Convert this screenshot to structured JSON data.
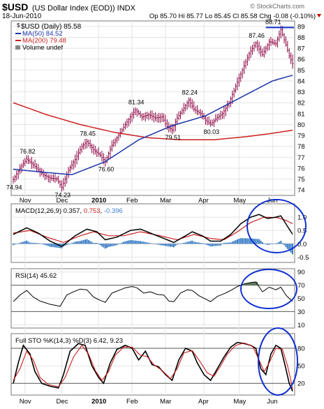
{
  "header": {
    "symbol": "$USD",
    "name": "(US Dollar Index (EOD)) INDX",
    "date": "18-Jun-2010",
    "quote": "Op 85.70  Hi 85.77  Lo 85.45  Cl 85.58  Chg -0.08 (-0.10%)",
    "watermark": "© StockCharts.com"
  },
  "colors": {
    "price_bars": "#8b0040",
    "ma50": "#1a33aa",
    "ma200": "#cc1f1f",
    "macd_line": "#000000",
    "signal_line": "#cc1f1f",
    "histogram": "#3c7fc8",
    "rsi_fill": "#5d7a5d",
    "circle": "#1030d0",
    "resistance": "#1030d0"
  },
  "chart_data": [
    {
      "type": "line",
      "panel": "price",
      "legend": [
        "$USD (Daily) 85.58",
        "MA(50) 84.52",
        "MA(200) 79.48",
        "Volume undef"
      ],
      "ylim": [
        73.5,
        89.5
      ],
      "yticks": [
        74,
        75,
        76,
        77,
        78,
        79,
        80,
        81,
        82,
        83,
        84,
        85,
        86,
        87,
        88,
        89
      ],
      "x_months": [
        {
          "label": "Nov",
          "idx": 7
        },
        {
          "label": "Dec",
          "idx": 29
        },
        {
          "label": "2010",
          "idx": 51
        },
        {
          "label": "Feb",
          "idx": 71
        },
        {
          "label": "Mar",
          "idx": 91
        },
        {
          "label": "Apr",
          "idx": 114
        },
        {
          "label": "May",
          "idx": 135
        },
        {
          "label": "Jun",
          "idx": 155
        }
      ],
      "n_days": 168,
      "close_anchors": [
        [
          0,
          74.94
        ],
        [
          4,
          76.0
        ],
        [
          8,
          76.82
        ],
        [
          12,
          76.3
        ],
        [
          18,
          75.4
        ],
        [
          22,
          75.1
        ],
        [
          26,
          75.0
        ],
        [
          29,
          74.23
        ],
        [
          33,
          75.8
        ],
        [
          37,
          76.8
        ],
        [
          41,
          78.0
        ],
        [
          44,
          78.45
        ],
        [
          48,
          77.7
        ],
        [
          52,
          77.2
        ],
        [
          55,
          76.6
        ],
        [
          59,
          78.1
        ],
        [
          63,
          79.0
        ],
        [
          67,
          80.0
        ],
        [
          70,
          80.7
        ],
        [
          73,
          81.34
        ],
        [
          77,
          80.7
        ],
        [
          81,
          80.9
        ],
        [
          85,
          80.6
        ],
        [
          89,
          80.7
        ],
        [
          92,
          79.8
        ],
        [
          95,
          79.51
        ],
        [
          98,
          80.6
        ],
        [
          102,
          81.5
        ],
        [
          105,
          82.24
        ],
        [
          108,
          81.4
        ],
        [
          112,
          81.0
        ],
        [
          115,
          80.4
        ],
        [
          118,
          80.03
        ],
        [
          121,
          80.5
        ],
        [
          125,
          81.0
        ],
        [
          129,
          82.0
        ],
        [
          133,
          83.5
        ],
        [
          137,
          85.0
        ],
        [
          141,
          86.5
        ],
        [
          145,
          87.46
        ],
        [
          149,
          86.4
        ],
        [
          153,
          87.6
        ],
        [
          157,
          87.4
        ],
        [
          160,
          88.71
        ],
        [
          163,
          87.3
        ],
        [
          165,
          86.3
        ],
        [
          167,
          85.58
        ]
      ],
      "annotations": [
        {
          "text": "74.94",
          "idx": 0
        },
        {
          "text": "76.82",
          "idx": 8
        },
        {
          "text": "74.23",
          "idx": 29
        },
        {
          "text": "78.45",
          "idx": 44
        },
        {
          "text": "76.60",
          "idx": 55
        },
        {
          "text": "81.34",
          "idx": 73
        },
        {
          "text": "79.51",
          "idx": 95
        },
        {
          "text": "82.24",
          "idx": 105
        },
        {
          "text": "80.03",
          "idx": 118
        },
        {
          "text": "87.46",
          "idx": 145
        },
        {
          "text": "88.71",
          "idx": 160
        }
      ],
      "ma50_anchors": [
        [
          0,
          75.9
        ],
        [
          20,
          75.6
        ],
        [
          35,
          75.4
        ],
        [
          55,
          76.6
        ],
        [
          75,
          78.6
        ],
        [
          95,
          79.9
        ],
        [
          115,
          80.8
        ],
        [
          135,
          82.4
        ],
        [
          155,
          84.0
        ],
        [
          167,
          84.52
        ]
      ],
      "ma200_anchors": [
        [
          0,
          82.0
        ],
        [
          20,
          80.9
        ],
        [
          40,
          80.0
        ],
        [
          60,
          79.3
        ],
        [
          80,
          78.8
        ],
        [
          100,
          78.6
        ],
        [
          120,
          78.6
        ],
        [
          140,
          78.9
        ],
        [
          155,
          79.2
        ],
        [
          167,
          79.48
        ]
      ],
      "resistance_level": 88.9
    },
    {
      "type": "line",
      "panel": "macd",
      "title": "MACD(12,26,9) 0.357, 0.753, -0.396",
      "legend_parts": [
        "MACD(12,26,9) 0.357",
        "0.753",
        "-0.396"
      ],
      "ylim": [
        -0.7,
        1.5
      ],
      "yticks": [
        {
          "label": "1.0",
          "v": 1.0
        },
        {
          "label": "0.5",
          "v": 0.5
        },
        {
          "label": "0.0",
          "v": 0.0
        },
        {
          "label": "-0.5",
          "v": -0.5
        }
      ],
      "macd_anchors": [
        [
          0,
          0.35
        ],
        [
          8,
          0.6
        ],
        [
          15,
          0.4
        ],
        [
          22,
          0.1
        ],
        [
          29,
          -0.1
        ],
        [
          37,
          0.3
        ],
        [
          44,
          0.55
        ],
        [
          50,
          0.45
        ],
        [
          55,
          0.15
        ],
        [
          62,
          0.25
        ],
        [
          70,
          0.5
        ],
        [
          76,
          0.55
        ],
        [
          84,
          0.35
        ],
        [
          92,
          0.15
        ],
        [
          96,
          0.05
        ],
        [
          103,
          0.3
        ],
        [
          107,
          0.45
        ],
        [
          113,
          0.3
        ],
        [
          118,
          0.1
        ],
        [
          124,
          0.1
        ],
        [
          130,
          0.35
        ],
        [
          136,
          0.75
        ],
        [
          142,
          1.0
        ],
        [
          147,
          1.1
        ],
        [
          152,
          0.95
        ],
        [
          157,
          1.0
        ],
        [
          160,
          1.05
        ],
        [
          164,
          0.65
        ],
        [
          167,
          0.357
        ]
      ],
      "signal_anchors": [
        [
          0,
          0.4
        ],
        [
          10,
          0.5
        ],
        [
          20,
          0.25
        ],
        [
          30,
          0.05
        ],
        [
          40,
          0.3
        ],
        [
          48,
          0.45
        ],
        [
          57,
          0.3
        ],
        [
          66,
          0.3
        ],
        [
          76,
          0.45
        ],
        [
          88,
          0.3
        ],
        [
          98,
          0.15
        ],
        [
          108,
          0.35
        ],
        [
          118,
          0.2
        ],
        [
          126,
          0.15
        ],
        [
          134,
          0.45
        ],
        [
          142,
          0.8
        ],
        [
          150,
          1.0
        ],
        [
          158,
          0.98
        ],
        [
          163,
          0.88
        ],
        [
          167,
          0.753
        ]
      ]
    },
    {
      "type": "line",
      "panel": "rsi",
      "title": "RSI(14) 45.62",
      "ylim": [
        5,
        95
      ],
      "yticks": [
        90,
        70,
        50,
        30,
        10
      ],
      "overbought": 70,
      "oversold": 30,
      "rsi_anchors": [
        [
          0,
          45
        ],
        [
          4,
          55
        ],
        [
          8,
          62
        ],
        [
          12,
          52
        ],
        [
          16,
          46
        ],
        [
          22,
          41
        ],
        [
          28,
          38
        ],
        [
          32,
          55
        ],
        [
          36,
          60
        ],
        [
          40,
          64
        ],
        [
          44,
          63
        ],
        [
          48,
          52
        ],
        [
          52,
          47
        ],
        [
          55,
          44
        ],
        [
          59,
          58
        ],
        [
          63,
          62
        ],
        [
          67,
          66
        ],
        [
          71,
          68
        ],
        [
          74,
          66
        ],
        [
          78,
          58
        ],
        [
          82,
          60
        ],
        [
          86,
          56
        ],
        [
          90,
          55
        ],
        [
          93,
          46
        ],
        [
          96,
          45
        ],
        [
          100,
          58
        ],
        [
          104,
          63
        ],
        [
          107,
          62
        ],
        [
          111,
          54
        ],
        [
          115,
          49
        ],
        [
          118,
          45
        ],
        [
          122,
          53
        ],
        [
          126,
          57
        ],
        [
          130,
          62
        ],
        [
          134,
          68
        ],
        [
          138,
          72
        ],
        [
          142,
          74
        ],
        [
          145,
          75
        ],
        [
          149,
          60
        ],
        [
          153,
          67
        ],
        [
          157,
          63
        ],
        [
          160,
          67
        ],
        [
          163,
          55
        ],
        [
          165,
          50
        ],
        [
          167,
          45.62
        ]
      ]
    },
    {
      "type": "line",
      "panel": "sto",
      "title": "Full STO %K(14,3) %D(3) 6.42, 9.23",
      "ylim": [
        0,
        105
      ],
      "yticks": [
        80,
        50,
        20
      ],
      "k_anchors": [
        [
          0,
          20
        ],
        [
          3,
          55
        ],
        [
          6,
          85
        ],
        [
          10,
          70
        ],
        [
          13,
          40
        ],
        [
          17,
          20
        ],
        [
          22,
          15
        ],
        [
          27,
          12
        ],
        [
          30,
          35
        ],
        [
          34,
          75
        ],
        [
          39,
          88
        ],
        [
          43,
          85
        ],
        [
          47,
          50
        ],
        [
          51,
          30
        ],
        [
          54,
          20
        ],
        [
          58,
          55
        ],
        [
          62,
          78
        ],
        [
          67,
          85
        ],
        [
          71,
          80
        ],
        [
          75,
          60
        ],
        [
          79,
          75
        ],
        [
          83,
          52
        ],
        [
          87,
          48
        ],
        [
          91,
          35
        ],
        [
          95,
          25
        ],
        [
          99,
          60
        ],
        [
          103,
          80
        ],
        [
          107,
          75
        ],
        [
          110,
          55
        ],
        [
          114,
          35
        ],
        [
          118,
          25
        ],
        [
          122,
          45
        ],
        [
          126,
          65
        ],
        [
          130,
          82
        ],
        [
          134,
          90
        ],
        [
          138,
          88
        ],
        [
          142,
          85
        ],
        [
          145,
          80
        ],
        [
          148,
          45
        ],
        [
          151,
          35
        ],
        [
          154,
          70
        ],
        [
          157,
          85
        ],
        [
          160,
          80
        ],
        [
          163,
          45
        ],
        [
          165,
          20
        ],
        [
          167,
          6.42
        ]
      ],
      "d_anchors": [
        [
          0,
          25
        ],
        [
          4,
          45
        ],
        [
          8,
          75
        ],
        [
          12,
          60
        ],
        [
          16,
          30
        ],
        [
          21,
          18
        ],
        [
          27,
          14
        ],
        [
          31,
          30
        ],
        [
          36,
          65
        ],
        [
          41,
          85
        ],
        [
          45,
          70
        ],
        [
          49,
          42
        ],
        [
          53,
          25
        ],
        [
          57,
          40
        ],
        [
          61,
          68
        ],
        [
          66,
          82
        ],
        [
          71,
          82
        ],
        [
          76,
          68
        ],
        [
          80,
          66
        ],
        [
          84,
          52
        ],
        [
          89,
          42
        ],
        [
          94,
          28
        ],
        [
          98,
          45
        ],
        [
          102,
          72
        ],
        [
          107,
          76
        ],
        [
          111,
          60
        ],
        [
          116,
          38
        ],
        [
          120,
          32
        ],
        [
          124,
          50
        ],
        [
          128,
          70
        ],
        [
          133,
          85
        ],
        [
          138,
          89
        ],
        [
          143,
          84
        ],
        [
          147,
          60
        ],
        [
          150,
          40
        ],
        [
          153,
          55
        ],
        [
          157,
          80
        ],
        [
          161,
          78
        ],
        [
          164,
          50
        ],
        [
          166,
          25
        ],
        [
          167,
          9.23
        ]
      ]
    }
  ],
  "bottom_axis_months": [
    "Nov",
    "Dec",
    "2010",
    "Feb",
    "Mar",
    "Apr",
    "May",
    "Jun"
  ]
}
